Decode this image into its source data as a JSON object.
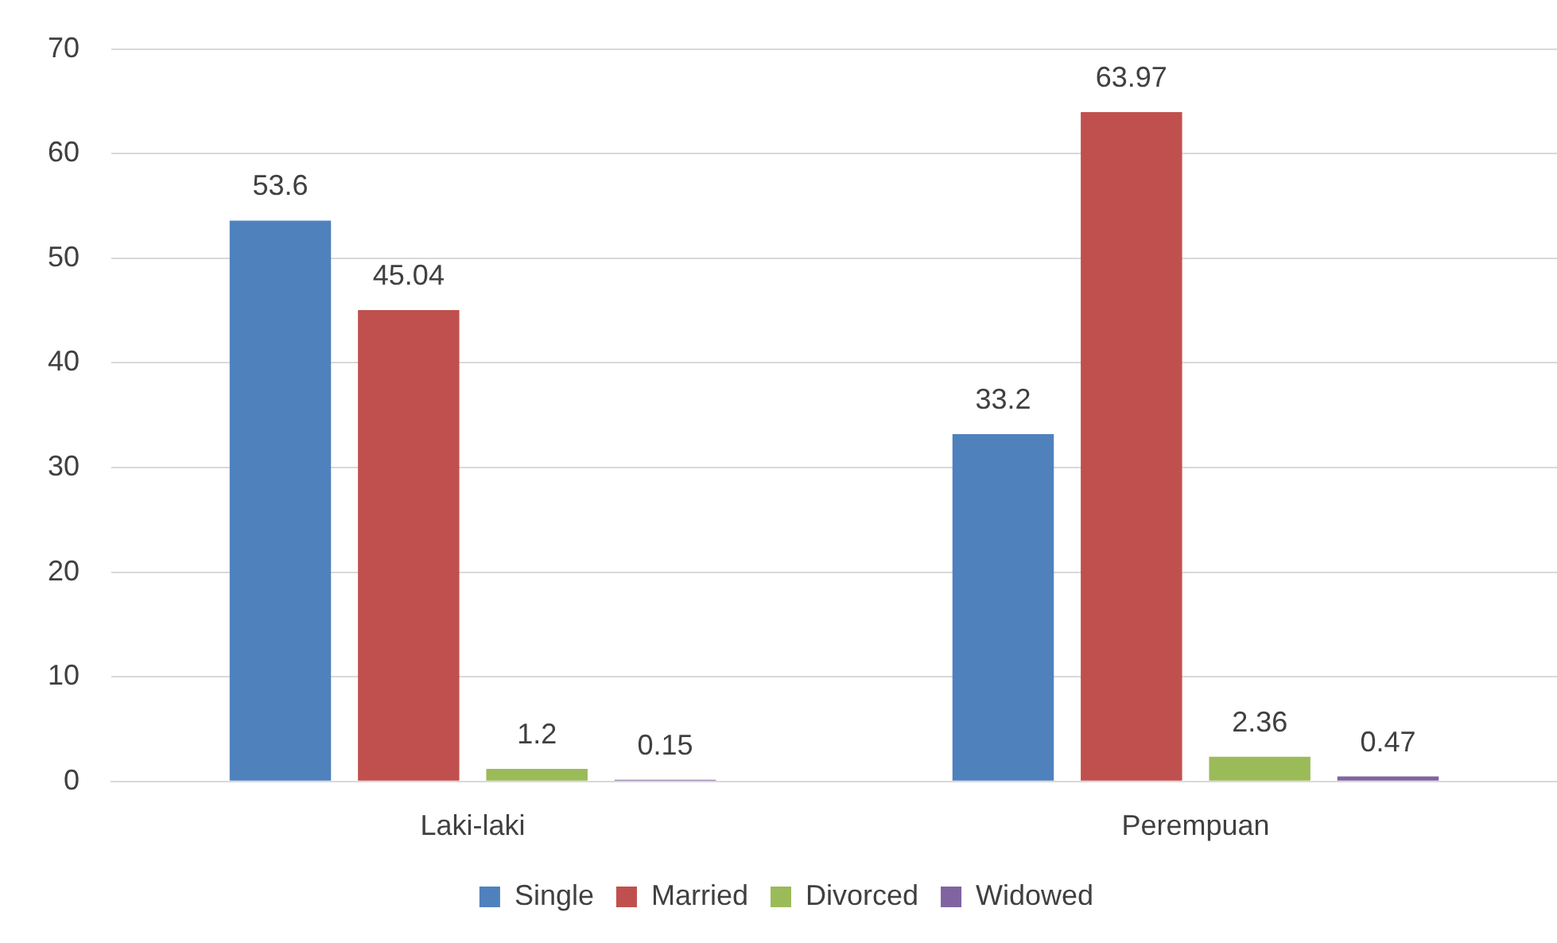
{
  "chart_data": {
    "type": "bar",
    "categories": [
      "Laki-laki",
      "Perempuan"
    ],
    "series": [
      {
        "name": "Single",
        "color": "#4f81bd",
        "values": [
          53.6,
          33.2
        ]
      },
      {
        "name": "Married",
        "color": "#c0504d",
        "values": [
          45.04,
          63.97
        ]
      },
      {
        "name": "Divorced",
        "color": "#9bbb59",
        "values": [
          1.2,
          2.36
        ]
      },
      {
        "name": "Widowed",
        "color": "#8064a2",
        "values": [
          0.15,
          0.47
        ]
      }
    ],
    "ylim": [
      0,
      70
    ],
    "yticks": [
      0,
      10,
      20,
      30,
      40,
      50,
      60,
      70
    ],
    "grid": "y",
    "legend": "bottom",
    "data_labels": true
  }
}
